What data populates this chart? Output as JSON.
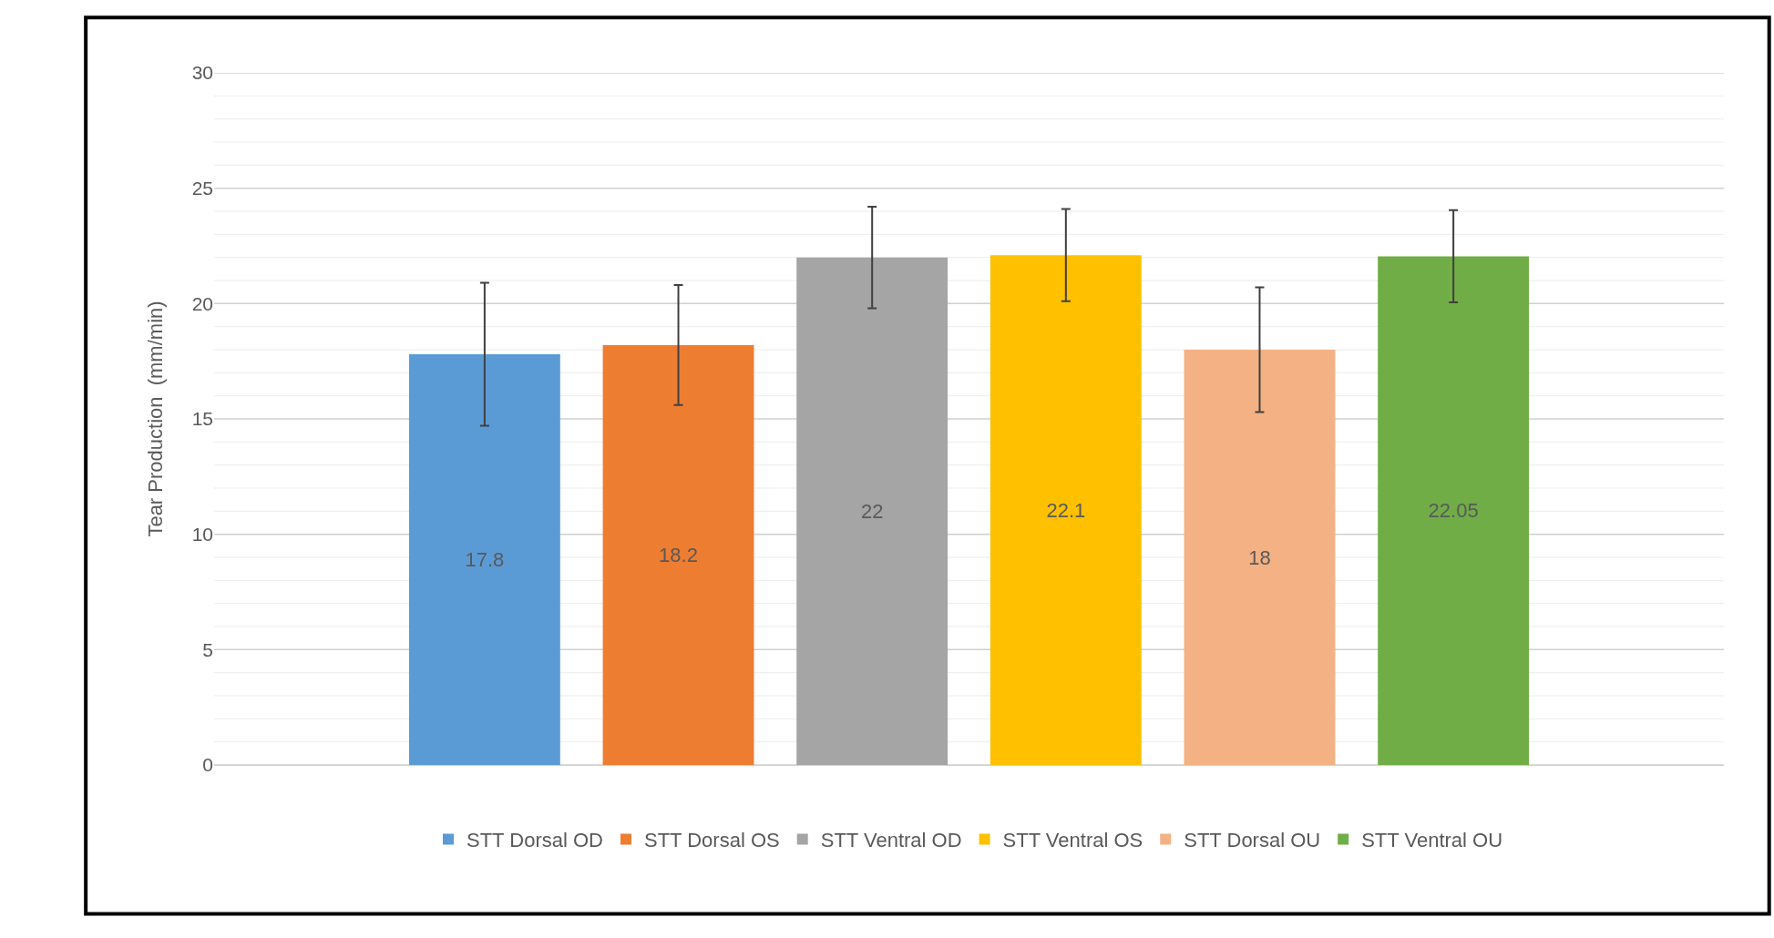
{
  "chart_data": {
    "type": "bar",
    "ylabel": "Tear Production  (mm/min)",
    "categories": [
      null
    ],
    "series": [
      {
        "name": "STT Dorsal OD",
        "color": "#5b9bd5",
        "values": [
          17.8
        ],
        "errors": [
          3.1
        ]
      },
      {
        "name": "STT Dorsal OS",
        "color": "#ed7d31",
        "values": [
          18.2
        ],
        "errors": [
          2.6
        ]
      },
      {
        "name": "STT Ventral OD",
        "color": "#a5a5a5",
        "values": [
          22
        ],
        "errors": [
          2.2
        ]
      },
      {
        "name": "STT Ventral OS",
        "color": "#ffc000",
        "values": [
          22.1
        ],
        "errors": [
          2.0
        ]
      },
      {
        "name": "STT Dorsal OU",
        "color": "#f4b183",
        "values": [
          18
        ],
        "errors": [
          2.7
        ]
      },
      {
        "name": "STT Ventral OU",
        "color": "#70ad47",
        "values": [
          22.05
        ],
        "errors": [
          2.0
        ]
      }
    ],
    "ylim": [
      0,
      30
    ],
    "yticks": [
      0,
      {
        "value": 1,
        "label": null
      },
      {
        "value": 2,
        "label": null
      },
      {
        "value": 3,
        "label": null
      },
      {
        "value": 4,
        "label": null
      },
      5,
      {
        "value": 6,
        "label": null
      },
      {
        "value": 7,
        "label": null
      },
      {
        "value": 8,
        "label": null
      },
      {
        "value": 9,
        "label": null
      },
      10,
      {
        "value": 11,
        "label": null
      },
      {
        "value": 12,
        "label": null
      },
      {
        "value": 13,
        "label": null
      },
      {
        "value": 14,
        "label": null
      },
      15,
      {
        "value": 16,
        "label": null
      },
      {
        "value": 17,
        "label": null
      },
      {
        "value": 18,
        "label": null
      },
      {
        "value": 19,
        "label": null
      },
      20,
      {
        "value": 21,
        "label": null
      },
      {
        "value": 22,
        "label": null
      },
      {
        "value": 23,
        "label": null
      },
      {
        "value": 24,
        "label": null
      },
      25,
      {
        "value": 26,
        "label": null
      },
      {
        "value": 27,
        "label": null
      },
      {
        "value": 28,
        "label": null
      },
      {
        "value": 29,
        "label": null
      },
      30
    ],
    "grid": "y",
    "legend": "bottom",
    "data_labels": true
  }
}
